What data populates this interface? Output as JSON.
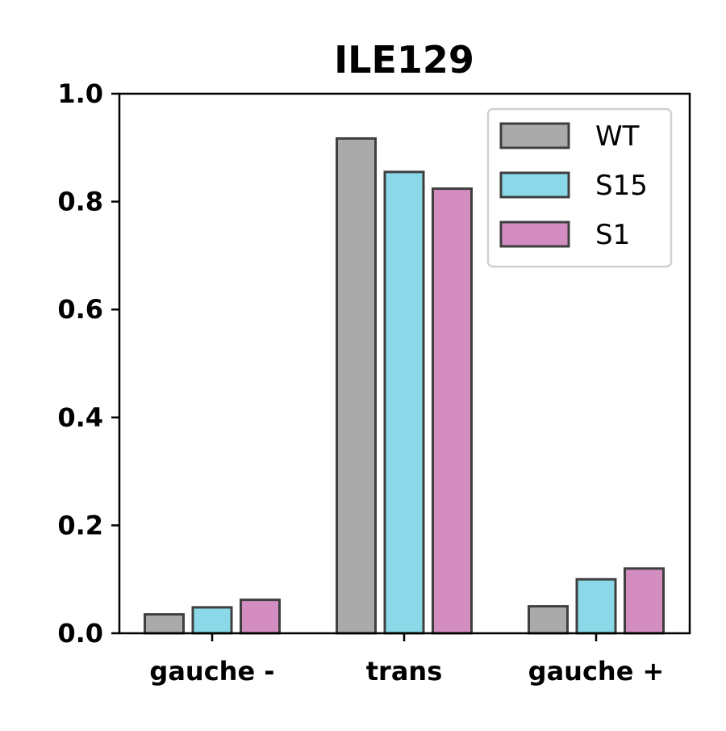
{
  "chart_data": {
    "type": "bar",
    "title": "ILE129",
    "xlabel": "",
    "ylabel": "",
    "categories": [
      "gauche -",
      "trans",
      "gauche +"
    ],
    "series": [
      {
        "name": "WT",
        "color": "#aaaaaa",
        "values": [
          0.035,
          0.917,
          0.05
        ]
      },
      {
        "name": "S15",
        "color": "#8ad8e8",
        "values": [
          0.048,
          0.855,
          0.1
        ]
      },
      {
        "name": "S1",
        "color": "#d38dc0",
        "values": [
          0.062,
          0.824,
          0.12
        ]
      }
    ],
    "ylim": [
      0,
      1.0
    ],
    "yticks": [
      "0.0",
      "0.2",
      "0.4",
      "0.6",
      "0.8",
      "1.0"
    ],
    "grid": false,
    "legend_position": "top-right",
    "edge_color": "#3f3f3f"
  }
}
